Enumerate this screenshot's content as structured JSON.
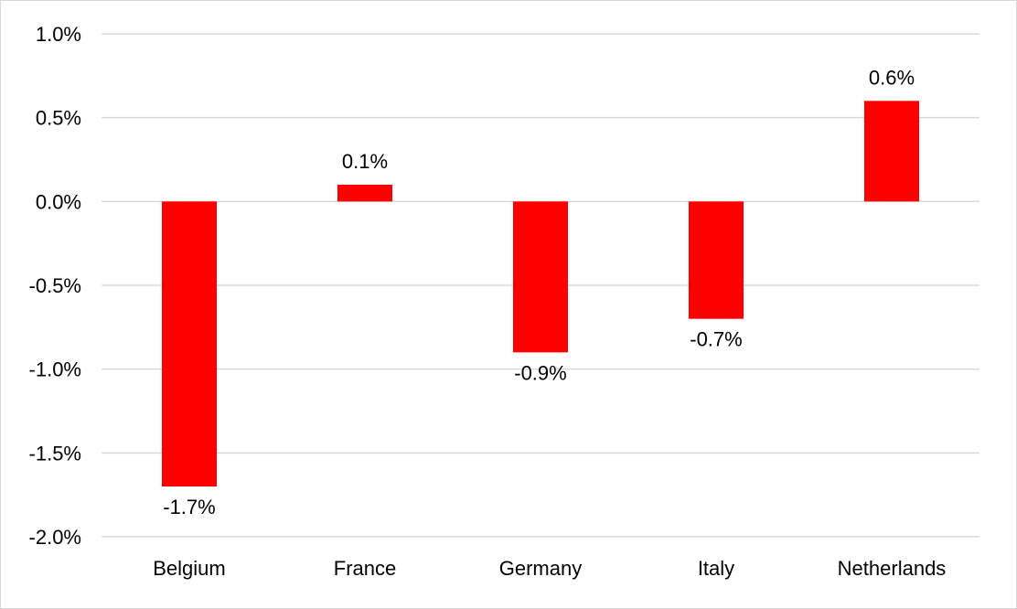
{
  "chart_data": {
    "type": "bar",
    "categories": [
      "Belgium",
      "France",
      "Germany",
      "Italy",
      "Netherlands"
    ],
    "series": [
      {
        "values": [
          -1.7,
          0.1,
          -0.9,
          -0.7,
          0.6
        ]
      }
    ],
    "data_labels": [
      "-1.7%",
      "0.1%",
      "-0.9%",
      "-0.7%",
      "0.6%"
    ],
    "y_ticks": [
      1.0,
      0.5,
      0.0,
      -0.5,
      -1.0,
      -1.5,
      -2.0
    ],
    "y_tick_labels": [
      "1.0%",
      "0.5%",
      "0.0%",
      "-0.5%",
      "-1.0%",
      "-1.5%",
      "-2.0%"
    ],
    "ylim": [
      -2.0,
      1.0
    ],
    "title": "",
    "xlabel": "",
    "ylabel": "",
    "grid": true,
    "legend": "none",
    "bar_color": "#ff0000"
  }
}
